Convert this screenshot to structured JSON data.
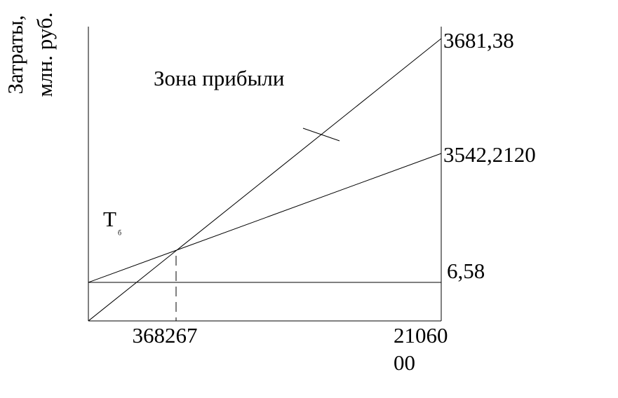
{
  "axis_label": {
    "line1": "Затраты,",
    "line2": "млн. руб."
  },
  "zone_label": "Зона прибыли",
  "break_even": {
    "letter": "Т",
    "subscript": "б"
  },
  "right_labels": {
    "revenue_end": "3681,38",
    "cost_end": "3542,2120",
    "fixed_cost": "6,58"
  },
  "x_labels": {
    "break_even_volume": "368267",
    "max_volume": {
      "line1": "21060",
      "line2": "00"
    }
  }
}
